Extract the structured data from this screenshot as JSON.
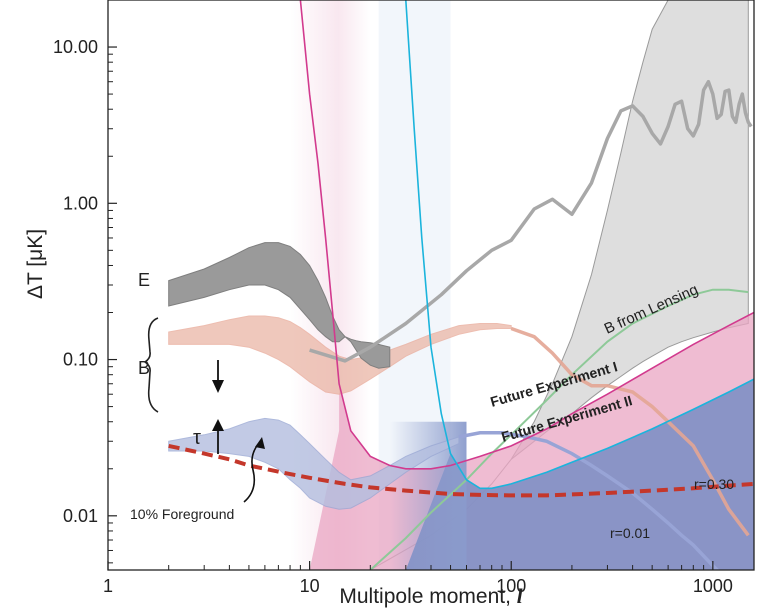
{
  "chart_data": {
    "type": "line",
    "xlabel": "Multipole moment, ",
    "xlabel_symbol": "l",
    "ylabel": "ΔT [μK]",
    "x_scale": "log",
    "y_scale": "log",
    "xlim": [
      1,
      1600
    ],
    "ylim": [
      0.0045,
      20
    ],
    "x_ticks": [
      {
        "value": 1,
        "label": "1"
      },
      {
        "value": 10,
        "label": "10"
      },
      {
        "value": 100,
        "label": "100"
      },
      {
        "value": 1000,
        "label": "1000"
      }
    ],
    "y_ticks": [
      {
        "value": 0.01,
        "label": "0.01"
      },
      {
        "value": 0.1,
        "label": "0.10"
      },
      {
        "value": 1,
        "label": "1.00"
      },
      {
        "value": 10,
        "label": "10.00"
      }
    ],
    "grid": false,
    "colors": {
      "te_curve": "#a8a8a8",
      "e_band": "#9a9a9a",
      "b_band_primordial": "#eab6a6",
      "b_band_low": "#b3bedf",
      "lensing_band": "#dedede",
      "experiment_1": "#d23a8e",
      "experiment_1_fill": "#e9a6c3",
      "experiment_2": "#4a86c6",
      "experiment_2_fill": "#7e8fc4",
      "foreground": "#c4372b",
      "lensing_line": "#8ec998",
      "past_experiment_1": "#d23a8e",
      "past_experiment_2": "#1bb4dc"
    },
    "series": [
      {
        "name": "",
        "kind": "line",
        "x": [
          10,
          15,
          20,
          30,
          45,
          60,
          80,
          100,
          130,
          160,
          200,
          250,
          300,
          350,
          400,
          450,
          500,
          550,
          600,
          650,
          700,
          750,
          800,
          850,
          900,
          950,
          1000,
          1050,
          1100,
          1150,
          1200,
          1250,
          1300,
          1350,
          1400,
          1450,
          1500,
          1550
        ],
        "y": [
          0.115,
          0.098,
          0.12,
          0.17,
          0.26,
          0.37,
          0.5,
          0.58,
          0.92,
          1.06,
          0.85,
          1.35,
          2.6,
          3.9,
          4.2,
          3.6,
          2.8,
          2.4,
          3.1,
          4.3,
          4.5,
          3.0,
          2.7,
          3.2,
          5.3,
          6.0,
          5.0,
          3.5,
          3.7,
          5.2,
          5.3,
          3.6,
          3.3,
          4.3,
          5.0,
          3.8,
          3.3,
          3.1
        ]
      },
      {
        "name": "E",
        "kind": "band",
        "x": [
          2,
          3,
          4,
          5,
          6,
          7,
          8,
          9,
          10,
          11,
          12,
          13,
          14,
          15,
          16,
          17,
          18,
          20,
          22,
          25
        ],
        "upper": [
          0.32,
          0.38,
          0.45,
          0.52,
          0.56,
          0.56,
          0.53,
          0.47,
          0.4,
          0.32,
          0.25,
          0.19,
          0.155,
          0.14,
          0.135,
          0.132,
          0.13,
          0.128,
          0.125,
          0.12
        ],
        "lower": [
          0.22,
          0.25,
          0.28,
          0.3,
          0.3,
          0.28,
          0.25,
          0.21,
          0.18,
          0.155,
          0.14,
          0.13,
          0.13,
          0.14,
          0.13,
          0.115,
          0.102,
          0.092,
          0.088,
          0.09
        ]
      },
      {
        "name": "B",
        "kind": "band",
        "x": [
          2,
          3,
          4,
          5,
          6,
          7,
          8,
          9,
          10,
          12,
          14,
          16,
          20,
          25,
          30,
          40,
          55,
          70,
          85,
          100
        ],
        "upper": [
          0.15,
          0.165,
          0.18,
          0.19,
          0.19,
          0.185,
          0.175,
          0.16,
          0.145,
          0.12,
          0.105,
          0.1,
          0.105,
          0.115,
          0.125,
          0.145,
          0.165,
          0.17,
          0.17,
          0.165
        ],
        "lower": [
          0.125,
          0.125,
          0.125,
          0.12,
          0.11,
          0.1,
          0.09,
          0.08,
          0.072,
          0.062,
          0.06,
          0.063,
          0.075,
          0.09,
          0.105,
          0.125,
          0.145,
          0.155,
          0.158,
          0.158
        ]
      },
      {
        "name": "",
        "kind": "line",
        "x": [
          100,
          130,
          160,
          200,
          250,
          300,
          400,
          500,
          600,
          800,
          1000,
          1200,
          1500
        ],
        "y": [
          0.158,
          0.14,
          0.11,
          0.08,
          0.068,
          0.068,
          0.062,
          0.05,
          0.04,
          0.028,
          0.017,
          0.011,
          0.0075
        ]
      },
      {
        "name": "",
        "kind": "band",
        "x": [
          2,
          3,
          4,
          5,
          6,
          7,
          8,
          9,
          10,
          12,
          14,
          16,
          20,
          25,
          30,
          40,
          55
        ],
        "upper": [
          0.03,
          0.033,
          0.036,
          0.04,
          0.042,
          0.041,
          0.038,
          0.033,
          0.029,
          0.023,
          0.019,
          0.017,
          0.018,
          0.021,
          0.024,
          0.028,
          0.032
        ],
        "lower": [
          0.026,
          0.026,
          0.025,
          0.024,
          0.022,
          0.02,
          0.017,
          0.015,
          0.013,
          0.0115,
          0.011,
          0.0112,
          0.013,
          0.016,
          0.019,
          0.024,
          0.029
        ]
      },
      {
        "name": "",
        "kind": "line",
        "x": [
          55,
          70,
          90,
          120,
          150,
          200,
          250,
          300,
          400,
          500,
          600,
          700,
          800,
          1000,
          1200,
          1500
        ],
        "y": [
          0.032,
          0.034,
          0.034,
          0.032,
          0.03,
          0.025,
          0.021,
          0.018,
          0.014,
          0.011,
          0.009,
          0.0075,
          0.0065,
          0.0048,
          0.0038,
          0.003
        ]
      },
      {
        "name": "B from Lensing",
        "kind": "band",
        "x": [
          20,
          40,
          60,
          80,
          100,
          130,
          160,
          200,
          250,
          300,
          350,
          400,
          450,
          500,
          600,
          700,
          800,
          1000,
          1200,
          1500
        ],
        "upper": [
          0.0045,
          0.0075,
          0.011,
          0.016,
          0.023,
          0.04,
          0.07,
          0.14,
          0.35,
          0.9,
          2.1,
          4.5,
          8.0,
          13.0,
          20,
          20,
          20,
          20,
          20,
          20
        ],
        "lower": [
          0.0045,
          0.0075,
          0.011,
          0.016,
          0.023,
          0.03,
          0.037,
          0.045,
          0.057,
          0.068,
          0.078,
          0.088,
          0.097,
          0.105,
          0.12,
          0.13,
          0.138,
          0.15,
          0.16,
          0.17
        ]
      },
      {
        "name": "",
        "kind": "line",
        "x": [
          20,
          30,
          40,
          60,
          80,
          100,
          150,
          200,
          300,
          400,
          600,
          800,
          1000,
          1200,
          1500
        ],
        "y": [
          0.0045,
          0.0072,
          0.0105,
          0.017,
          0.025,
          0.033,
          0.055,
          0.08,
          0.13,
          0.17,
          0.22,
          0.26,
          0.28,
          0.28,
          0.27
        ]
      },
      {
        "name": "Future Experiment I",
        "kind": "line",
        "x": [
          9,
          10,
          11,
          12,
          13,
          14,
          16,
          20,
          25,
          30,
          40,
          50,
          70,
          100,
          150,
          200,
          300,
          500,
          800,
          1200,
          1600
        ],
        "y": [
          20,
          5.0,
          1.8,
          0.6,
          0.2,
          0.07,
          0.035,
          0.024,
          0.021,
          0.02,
          0.02,
          0.021,
          0.024,
          0.028,
          0.036,
          0.045,
          0.06,
          0.088,
          0.125,
          0.165,
          0.2
        ]
      },
      {
        "name": "Future Experiment II",
        "kind": "line",
        "x": [
          30,
          33,
          36,
          40,
          45,
          50,
          60,
          70,
          80,
          100,
          150,
          200,
          300,
          500,
          800,
          1200,
          1600
        ],
        "y": [
          20,
          3.0,
          0.6,
          0.12,
          0.045,
          0.025,
          0.017,
          0.015,
          0.015,
          0.016,
          0.019,
          0.022,
          0.027,
          0.036,
          0.048,
          0.062,
          0.075
        ]
      },
      {
        "name": "",
        "kind": "line",
        "x": [
          2,
          3,
          4,
          5,
          6,
          8,
          10,
          15,
          20,
          30,
          50,
          70,
          100,
          150,
          200,
          300,
          500,
          800,
          1200,
          1600
        ],
        "y": [
          0.028,
          0.025,
          0.023,
          0.021,
          0.02,
          0.0185,
          0.0175,
          0.016,
          0.0152,
          0.0145,
          0.0138,
          0.0136,
          0.0135,
          0.0135,
          0.0137,
          0.014,
          0.0145,
          0.015,
          0.0156,
          0.016
        ]
      }
    ],
    "annotations": {
      "e_label": "E",
      "b_label": "B",
      "tau_label": "τ",
      "foreground_label": "10% Foreground",
      "lensing_label": "B from Lensing",
      "experiment_1_label": "Future Experiment I",
      "experiment_2_label": "Future Experiment II",
      "r_high_label": "r=0.30",
      "r_low_label": "r=0.01"
    }
  }
}
